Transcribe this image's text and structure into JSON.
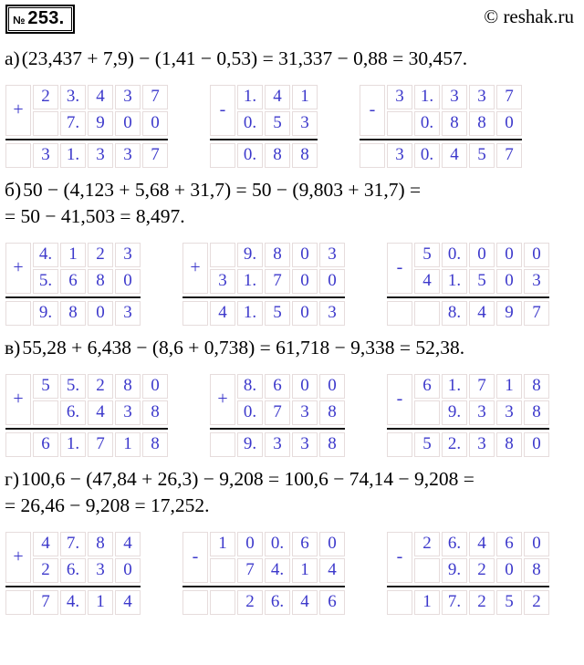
{
  "header": {
    "numero_sign": "№",
    "problem_number": "253.",
    "copyright": "© reshak.ru"
  },
  "colors": {
    "digit_blue": "#3c38cb",
    "cell_border": "#e6dcdc",
    "sum_line": "#161616"
  },
  "parts": [
    {
      "label": "а)",
      "lines": [
        "(23,437 + 7,9) − (1,41 − 0,53) = 31,337 − 0,88 = 30,457."
      ],
      "grids": [
        {
          "op": "+",
          "rows": [
            [
              "2",
              "3.",
              "4",
              "3",
              "7"
            ],
            [
              "",
              "7.",
              "9",
              "0",
              "0"
            ]
          ],
          "result": [
            "3",
            "1.",
            "3",
            "3",
            "7"
          ]
        },
        {
          "op": "-",
          "rows": [
            [
              "1.",
              "4",
              "1"
            ],
            [
              "0.",
              "5",
              "3"
            ]
          ],
          "result": [
            "0.",
            "8",
            "8"
          ]
        },
        {
          "op": "-",
          "rows": [
            [
              "3",
              "1.",
              "3",
              "3",
              "7"
            ],
            [
              "",
              "0.",
              "8",
              "8",
              "0"
            ]
          ],
          "result": [
            "3",
            "0.",
            "4",
            "5",
            "7"
          ]
        }
      ]
    },
    {
      "label": "б)",
      "lines": [
        "50 − (4,123 + 5,68 + 31,7) = 50 − (9,803 + 31,7) =",
        "= 50 − 41,503 = 8,497."
      ],
      "grids": [
        {
          "op": "+",
          "rows": [
            [
              "4.",
              "1",
              "2",
              "3"
            ],
            [
              "5.",
              "6",
              "8",
              "0"
            ]
          ],
          "result": [
            "9.",
            "8",
            "0",
            "3"
          ]
        },
        {
          "op": "+",
          "rows": [
            [
              "",
              "9.",
              "8",
              "0",
              "3"
            ],
            [
              "3",
              "1.",
              "7",
              "0",
              "0"
            ]
          ],
          "result": [
            "4",
            "1.",
            "5",
            "0",
            "3"
          ]
        },
        {
          "op": "-",
          "rows": [
            [
              "5",
              "0.",
              "0",
              "0",
              "0"
            ],
            [
              "4",
              "1.",
              "5",
              "0",
              "3"
            ]
          ],
          "result": [
            "",
            "8.",
            "4",
            "9",
            "7"
          ]
        }
      ]
    },
    {
      "label": "в)",
      "lines": [
        "55,28 + 6,438 − (8,6 + 0,738) = 61,718 − 9,338 = 52,38."
      ],
      "grids": [
        {
          "op": "+",
          "rows": [
            [
              "5",
              "5.",
              "2",
              "8",
              "0"
            ],
            [
              "",
              "6.",
              "4",
              "3",
              "8"
            ]
          ],
          "result": [
            "6",
            "1.",
            "7",
            "1",
            "8"
          ]
        },
        {
          "op": "+",
          "rows": [
            [
              "8.",
              "6",
              "0",
              "0"
            ],
            [
              "0.",
              "7",
              "3",
              "8"
            ]
          ],
          "result": [
            "9.",
            "3",
            "3",
            "8"
          ]
        },
        {
          "op": "-",
          "rows": [
            [
              "6",
              "1.",
              "7",
              "1",
              "8"
            ],
            [
              "",
              "9.",
              "3",
              "3",
              "8"
            ]
          ],
          "result": [
            "5",
            "2.",
            "3",
            "8",
            "0"
          ]
        }
      ]
    },
    {
      "label": "г)",
      "lines": [
        "100,6 − (47,84 + 26,3) − 9,208 = 100,6 − 74,14 − 9,208 =",
        "= 26,46 − 9,208 = 17,252."
      ],
      "grids": [
        {
          "op": "+",
          "rows": [
            [
              "4",
              "7.",
              "8",
              "4"
            ],
            [
              "2",
              "6.",
              "3",
              "0"
            ]
          ],
          "result": [
            "7",
            "4.",
            "1",
            "4"
          ]
        },
        {
          "op": "-",
          "rows": [
            [
              "1",
              "0",
              "0.",
              "6",
              "0"
            ],
            [
              "",
              "7",
              "4.",
              "1",
              "4"
            ]
          ],
          "result": [
            "",
            "2",
            "6.",
            "4",
            "6"
          ]
        },
        {
          "op": "-",
          "rows": [
            [
              "2",
              "6.",
              "4",
              "6",
              "0"
            ],
            [
              "",
              "9.",
              "2",
              "0",
              "8"
            ]
          ],
          "result": [
            "1",
            "7.",
            "2",
            "5",
            "2"
          ]
        }
      ]
    }
  ]
}
